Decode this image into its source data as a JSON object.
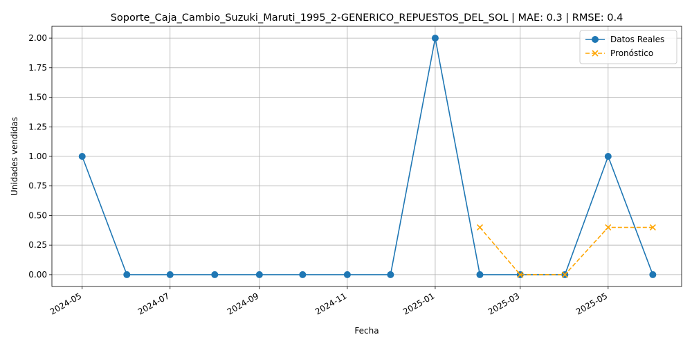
{
  "chart_data": {
    "type": "line",
    "title": "Soporte_Caja_Cambio_Suzuki_Maruti_1995_2-GENERICO_REPUESTOS_DEL_SOL | MAE: 0.3 | RMSE: 0.4",
    "xlabel": "Fecha",
    "ylabel": "Unidades vendidas",
    "ylim": [
      -0.1,
      2.1
    ],
    "xlim": [
      "2024-04-10",
      "2025-06-21"
    ],
    "grid": true,
    "legend_position": "top-right",
    "x_ticks": [
      "2024-05",
      "2024-07",
      "2024-09",
      "2024-11",
      "2025-01",
      "2025-03",
      "2025-05"
    ],
    "y_ticks": [
      "0.00",
      "0.25",
      "0.50",
      "0.75",
      "1.00",
      "1.25",
      "1.50",
      "1.75",
      "2.00"
    ],
    "series": [
      {
        "name": "Datos Reales",
        "color": "#1f77b4",
        "line_style": "solid",
        "marker": "circle",
        "x": [
          "2024-05-01",
          "2024-06-01",
          "2024-07-01",
          "2024-08-01",
          "2024-09-01",
          "2024-10-01",
          "2024-11-01",
          "2024-12-01",
          "2025-01-01",
          "2025-02-01",
          "2025-03-01",
          "2025-04-01",
          "2025-05-01",
          "2025-06-01"
        ],
        "values": [
          1,
          0,
          0,
          0,
          0,
          0,
          0,
          0,
          2,
          0,
          0,
          0,
          1,
          0
        ]
      },
      {
        "name": "Pronóstico",
        "color": "#ffa500",
        "line_style": "dashed",
        "marker": "x",
        "x": [
          "2025-02-01",
          "2025-03-01",
          "2025-04-01",
          "2025-05-01",
          "2025-06-01"
        ],
        "values": [
          0.4,
          0.0,
          0.0,
          0.4,
          0.4
        ]
      }
    ]
  }
}
